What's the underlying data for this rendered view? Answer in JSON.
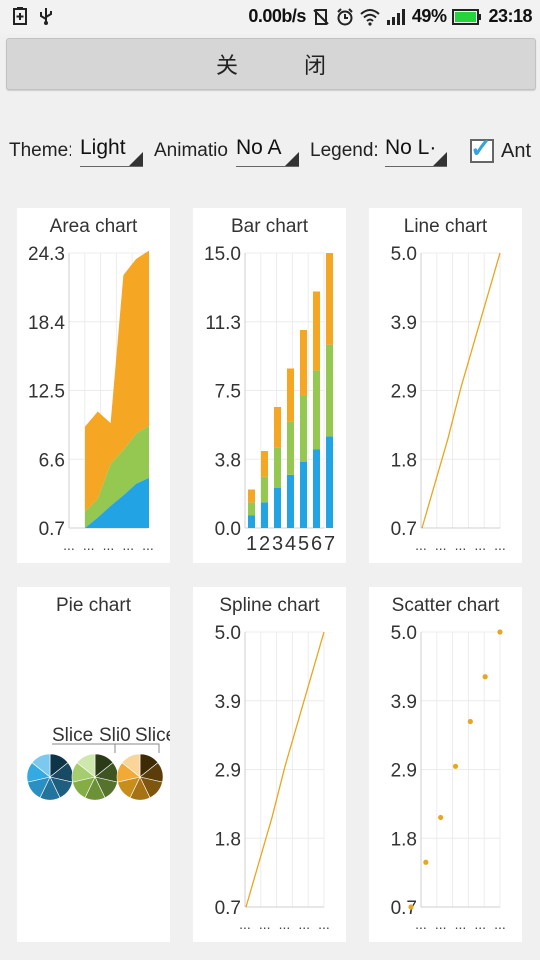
{
  "status": {
    "speed": "0.00b/s",
    "battery": "49%",
    "time": "23:18",
    "icons": [
      "battery-saver-icon",
      "usb-icon",
      "mute-icon",
      "alarm-icon",
      "wifi-icon",
      "signal-icon",
      "battery-icon"
    ]
  },
  "close_button": "关  闭",
  "controls": {
    "theme_label": "Theme:",
    "theme_value": "Light",
    "animation_label": "Animatio",
    "animation_value": "No A",
    "legend_label": "Legend:",
    "legend_value": "No L·",
    "antialias_label": "Ant",
    "antialias_checked": true
  },
  "colors": {
    "blue": "#22a3e3",
    "green": "#95c851",
    "orange": "#f5a623",
    "line": "#e9a61f"
  },
  "charts": {
    "area": {
      "title": "Area chart",
      "yticks": [
        "24.3",
        "18.4",
        "12.5",
        "6.6",
        "0.7"
      ],
      "xticks": [
        "...",
        "...",
        "...",
        "...",
        "..."
      ]
    },
    "bar": {
      "title": "Bar chart",
      "yticks": [
        "15.0",
        "11.3",
        "7.5",
        "3.8",
        "0.0"
      ],
      "xticks": [
        "1",
        "2",
        "3",
        "4",
        "5",
        "6",
        "7"
      ]
    },
    "line": {
      "title": "Line chart",
      "yticks": [
        "5.0",
        "3.9",
        "2.9",
        "1.8",
        "0.7"
      ],
      "xticks": [
        "...",
        "...",
        "...",
        "...",
        "..."
      ]
    },
    "pie": {
      "title": "Pie chart",
      "labels": [
        "Slice",
        "Sli0",
        "Slice..."
      ]
    },
    "spline": {
      "title": "Spline chart",
      "yticks": [
        "5.0",
        "3.9",
        "2.9",
        "1.8",
        "0.7"
      ],
      "xticks": [
        "...",
        "...",
        "...",
        "...",
        "..."
      ]
    },
    "scatter": {
      "title": "Scatter chart",
      "yticks": [
        "5.0",
        "3.9",
        "2.9",
        "1.8",
        "0.7"
      ],
      "xticks": [
        "...",
        "...",
        "...",
        "...",
        "..."
      ]
    }
  },
  "chart_data": [
    {
      "type": "area",
      "title": "Area chart",
      "ylim": [
        0.7,
        24.3
      ],
      "x": [
        0,
        1,
        2,
        3,
        4,
        5
      ],
      "series": [
        {
          "values": [
            0.7,
            1.6,
            2.6,
            3.5,
            4.5,
            5.0
          ]
        },
        {
          "values": [
            1.4,
            1.6,
            3.6,
            3.9,
            4.3,
            4.5
          ]
        },
        {
          "values": [
            7.3,
            7.5,
            3.5,
            15.0,
            15.0,
            15.0
          ]
        }
      ]
    },
    {
      "type": "bar",
      "title": "Bar chart",
      "ylim": [
        0,
        15
      ],
      "categories": [
        "1",
        "2",
        "3",
        "4",
        "5",
        "6",
        "7"
      ],
      "series": [
        {
          "values": [
            0.7,
            1.4,
            2.2,
            2.9,
            3.6,
            4.3,
            5.0
          ]
        },
        {
          "values": [
            0.7,
            1.4,
            2.2,
            2.9,
            3.6,
            4.3,
            5.0
          ]
        },
        {
          "values": [
            0.7,
            1.4,
            2.2,
            2.9,
            3.6,
            4.3,
            5.0
          ]
        }
      ]
    },
    {
      "type": "line",
      "title": "Line chart",
      "ylim": [
        0.7,
        5.0
      ],
      "x": [
        0,
        1,
        2,
        3,
        4,
        5,
        6
      ],
      "values": [
        0.7,
        1.4,
        2.1,
        2.9,
        3.6,
        4.3,
        5.0
      ]
    },
    {
      "type": "pie",
      "title": "Pie chart",
      "series": [
        {
          "values": [
            1,
            1,
            1,
            1,
            1,
            1,
            1
          ]
        },
        {
          "values": [
            1,
            1,
            1,
            1,
            1,
            1,
            1
          ]
        },
        {
          "values": [
            1,
            1,
            1,
            1,
            1,
            1,
            1
          ]
        }
      ]
    },
    {
      "type": "line",
      "title": "Spline chart",
      "ylim": [
        0.7,
        5.0
      ],
      "x": [
        0,
        1,
        2,
        3,
        4,
        5,
        6
      ],
      "values": [
        0.7,
        1.4,
        2.1,
        2.9,
        3.6,
        4.3,
        5.0
      ]
    },
    {
      "type": "scatter",
      "title": "Scatter chart",
      "ylim": [
        0.7,
        5.0
      ],
      "x": [
        0,
        1,
        2,
        3,
        4,
        5,
        6
      ],
      "values": [
        0.7,
        1.4,
        2.1,
        2.9,
        3.6,
        4.3,
        5.0
      ]
    }
  ]
}
